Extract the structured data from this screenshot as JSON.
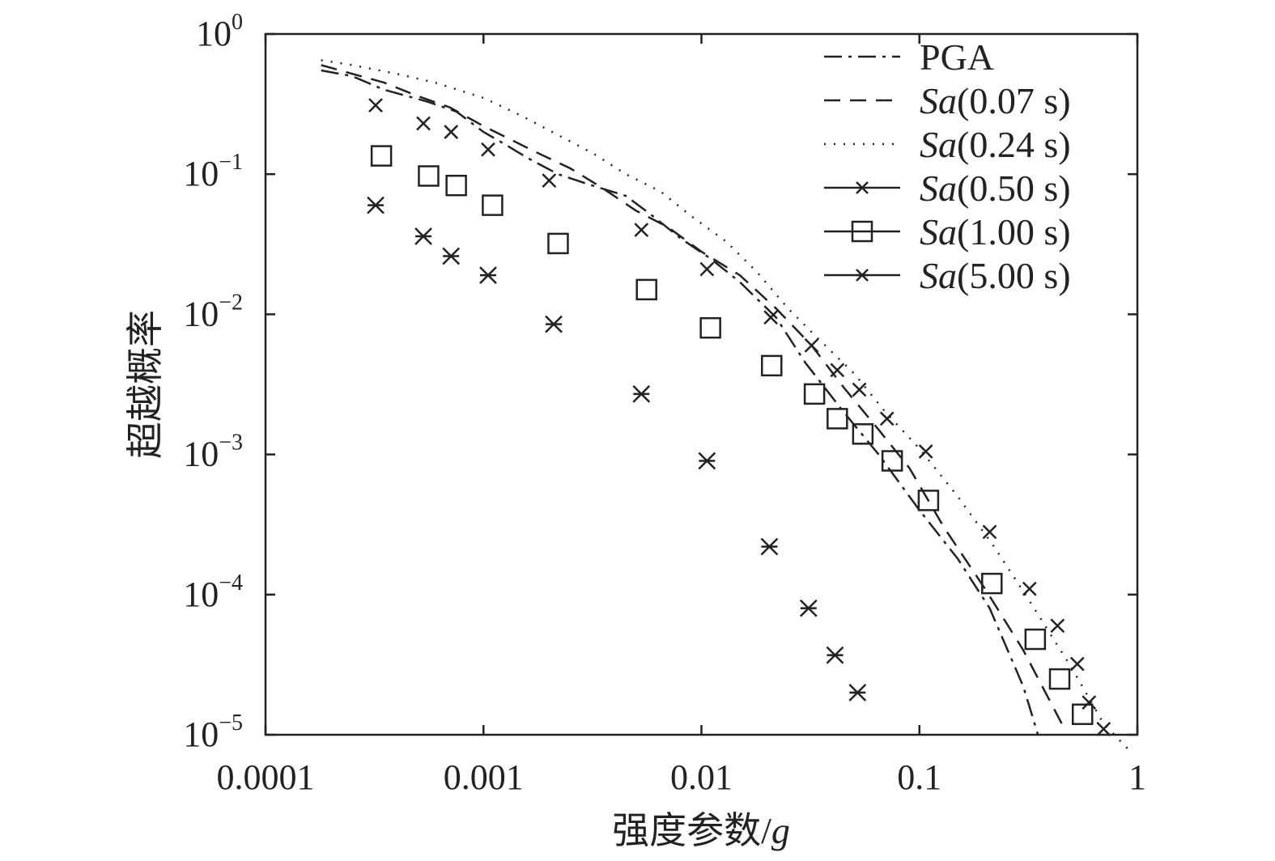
{
  "chart_data": {
    "type": "line",
    "title": "",
    "xlabel": "强度参数/",
    "xlabel_italic": "g",
    "ylabel": "超越概率",
    "xscale": "log",
    "yscale": "log",
    "xlim": [
      0.0001,
      1
    ],
    "ylim": [
      1e-05,
      1
    ],
    "grid": false,
    "legend_position": "top-right",
    "x_ticks": [
      {
        "value": 0.0001,
        "label": "0.0001"
      },
      {
        "value": 0.001,
        "label": "0.001"
      },
      {
        "value": 0.01,
        "label": "0.01"
      },
      {
        "value": 0.1,
        "label": "0.1"
      },
      {
        "value": 1,
        "label": "1"
      }
    ],
    "y_ticks": [
      {
        "value": 1,
        "base": "10",
        "exp": "0"
      },
      {
        "value": 0.1,
        "base": "10",
        "exp": "−1"
      },
      {
        "value": 0.01,
        "base": "10",
        "exp": "−2"
      },
      {
        "value": 0.001,
        "base": "10",
        "exp": "−3"
      },
      {
        "value": 0.0001,
        "base": "10",
        "exp": "−4"
      },
      {
        "value": 1e-05,
        "base": "10",
        "exp": "−5"
      }
    ],
    "series": [
      {
        "name": "PGA",
        "name_italic": "",
        "name_suffix": "",
        "style": "dashdot",
        "marker": "none",
        "x": [
          0.00018,
          0.00025,
          0.00035,
          0.00055,
          0.00075,
          0.001,
          0.0012,
          0.0016,
          0.0022,
          0.003,
          0.0045,
          0.006,
          0.008,
          0.011,
          0.015,
          0.022,
          0.03,
          0.045,
          0.065,
          0.1,
          0.15,
          0.21,
          0.3,
          0.35
        ],
        "y": [
          0.55,
          0.5,
          0.4,
          0.33,
          0.28,
          0.2,
          0.17,
          0.13,
          0.1,
          0.085,
          0.07,
          0.05,
          0.035,
          0.025,
          0.017,
          0.0095,
          0.0045,
          0.002,
          0.001,
          0.0004,
          0.00018,
          8e-05,
          2.2e-05,
          1e-05
        ]
      },
      {
        "name": "",
        "name_italic": "Sa",
        "name_suffix": "(0.07 s)",
        "style": "dashed",
        "marker": "none",
        "x": [
          0.00018,
          0.00022,
          0.00035,
          0.0005,
          0.0007,
          0.001,
          0.0013,
          0.0018,
          0.0025,
          0.0035,
          0.005,
          0.007,
          0.01,
          0.015,
          0.022,
          0.032,
          0.045,
          0.065,
          0.09,
          0.13,
          0.2,
          0.3,
          0.45
        ],
        "y": [
          0.6,
          0.55,
          0.45,
          0.36,
          0.3,
          0.22,
          0.18,
          0.14,
          0.11,
          0.08,
          0.055,
          0.042,
          0.028,
          0.019,
          0.011,
          0.006,
          0.003,
          0.0015,
          0.0008,
          0.0003,
          0.00011,
          4e-05,
          1.2e-05
        ]
      },
      {
        "name": "",
        "name_italic": "Sa",
        "name_suffix": "(0.24 s)",
        "style": "dotted",
        "marker": "none",
        "x": [
          0.00018,
          0.00025,
          0.0004,
          0.0006,
          0.001,
          0.0015,
          0.0022,
          0.0032,
          0.0045,
          0.0065,
          0.009,
          0.013,
          0.018,
          0.025,
          0.035,
          0.05,
          0.07,
          0.1,
          0.15,
          0.22,
          0.32,
          0.5,
          0.7,
          0.9
        ],
        "y": [
          0.65,
          0.6,
          0.52,
          0.45,
          0.35,
          0.26,
          0.19,
          0.14,
          0.1,
          0.075,
          0.05,
          0.033,
          0.02,
          0.011,
          0.0065,
          0.0038,
          0.002,
          0.0011,
          0.0005,
          0.00022,
          9e-05,
          3e-05,
          1.2e-05,
          8e-06
        ]
      },
      {
        "name": "",
        "name_italic": "Sa",
        "name_suffix": "(0.50 s)",
        "style": "none",
        "marker": "x",
        "x": [
          0.00032,
          0.00053,
          0.00071,
          0.00105,
          0.002,
          0.0053,
          0.0106,
          0.0208,
          0.032,
          0.042,
          0.053,
          0.071,
          0.107,
          0.21,
          0.32,
          0.43,
          0.53,
          0.6,
          0.7
        ],
        "y": [
          0.31,
          0.23,
          0.2,
          0.15,
          0.09,
          0.04,
          0.021,
          0.0095,
          0.006,
          0.004,
          0.0029,
          0.0018,
          0.00105,
          0.00028,
          0.00011,
          6e-05,
          3.2e-05,
          1.7e-05,
          1.1e-05
        ]
      },
      {
        "name": "",
        "name_italic": "Sa",
        "name_suffix": "(1.00 s)",
        "style": "none",
        "marker": "square",
        "x": [
          0.00034,
          0.00056,
          0.00075,
          0.0011,
          0.0022,
          0.0056,
          0.011,
          0.021,
          0.033,
          0.042,
          0.055,
          0.075,
          0.11,
          0.215,
          0.34,
          0.44,
          0.56
        ],
        "y": [
          0.135,
          0.097,
          0.083,
          0.06,
          0.032,
          0.015,
          0.008,
          0.0043,
          0.0027,
          0.0018,
          0.0014,
          0.0009,
          0.00047,
          0.00012,
          4.8e-05,
          2.5e-05,
          1.4e-05
        ]
      },
      {
        "name": "",
        "name_italic": "Sa",
        "name_suffix": "(5.00 s)",
        "style": "none",
        "marker": "asterisk",
        "x": [
          0.00032,
          0.00053,
          0.00071,
          0.00105,
          0.0021,
          0.0053,
          0.0106,
          0.0205,
          0.031,
          0.041,
          0.052
        ],
        "y": [
          0.06,
          0.036,
          0.026,
          0.019,
          0.0085,
          0.0027,
          0.0009,
          0.00022,
          8e-05,
          3.7e-05,
          2e-05
        ]
      }
    ]
  }
}
